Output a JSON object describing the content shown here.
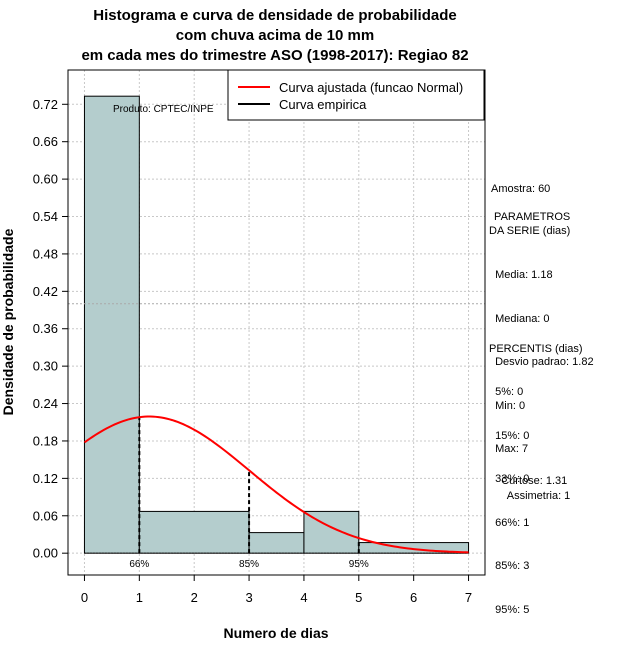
{
  "chart_data": {
    "type": "bar",
    "title_lines": [
      "Histograma e curva de densidade de probabilidade",
      "com chuva acima de 10 mm",
      "em cada mes do trimestre ASO (1998-2017): Regiao 82"
    ],
    "xlabel": "Numero de dias",
    "ylabel": "Densidade de probabilidade",
    "xlim": [
      -0.3,
      7.3
    ],
    "ylim": [
      -0.035,
      0.775
    ],
    "x_ticks": [
      "0",
      "1",
      "2",
      "3",
      "4",
      "5",
      "6",
      "7"
    ],
    "y_ticks": [
      "0.00",
      "0.06",
      "0.12",
      "0.18",
      "0.24",
      "0.30",
      "0.36",
      "0.42",
      "0.48",
      "0.54",
      "0.60",
      "0.66",
      "0.72"
    ],
    "bins": [
      {
        "from": 0,
        "to": 1,
        "density": 0.733
      },
      {
        "from": 1,
        "to": 3,
        "density": 0.067
      },
      {
        "from": 3,
        "to": 4,
        "density": 0.033
      },
      {
        "from": 4,
        "to": 5,
        "density": 0.067
      },
      {
        "from": 5,
        "to": 7,
        "density": 0.017
      }
    ],
    "bar_color": "#b4cdcd",
    "normal_curve": {
      "mean": 1.18,
      "sd": 1.82,
      "color": "#ff0000",
      "label": "Curva ajustada (funcao Normal)"
    },
    "empirical": {
      "label": "Curva empirica",
      "color": "#000000"
    },
    "reference_line_y": 0.4,
    "percentile_marks": [
      {
        "x": 1,
        "label": "66%"
      },
      {
        "x": 3,
        "label": "85%"
      },
      {
        "x": 5,
        "label": "95%"
      }
    ],
    "product_label": "Produto: CPTEC/INPE"
  },
  "stats": {
    "amostra": "Amostra: 60",
    "parametros_title": " PARAMETROS",
    "parametros_subtitle": "DA SERIE (dias)",
    "parametros": [
      "  Media: 1.18",
      "  Mediana: 0",
      "  Desvio padrao: 1.82",
      "  Min: 0",
      "  Max: 7"
    ],
    "percentis_title": "PERCENTIS (dias)",
    "percentis": [
      "  5%: 0",
      "  15%: 0",
      "  33%: 0",
      "  66%: 1",
      "  85%: 3",
      "  95%: 5"
    ],
    "curtose": "    Curtose: 1.31",
    "assimetria": "      Assimetria: 1"
  }
}
